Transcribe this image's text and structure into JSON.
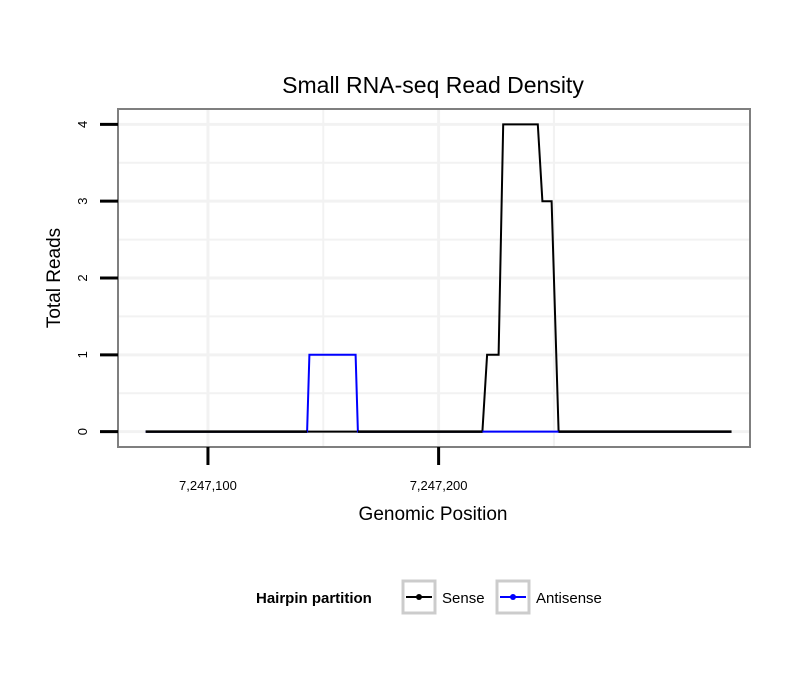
{
  "chart_data": {
    "type": "line",
    "title": "Small RNA-seq Read Density",
    "xlabel": "Genomic Position",
    "ylabel": "Total Reads",
    "xlim": [
      7247061,
      7247335
    ],
    "ylim": [
      -0.2,
      4.2
    ],
    "x_ticks": [
      7247100,
      7247200
    ],
    "x_tick_labels": [
      "7,247,100",
      "7,247,200"
    ],
    "y_ticks": [
      0,
      1,
      2,
      3,
      4
    ],
    "y_tick_labels": [
      "0",
      "1",
      "2",
      "3",
      "4"
    ],
    "grid": true,
    "legend": {
      "title": "Hairpin partition",
      "position": "bottom",
      "entries": [
        "Sense",
        "Antisense"
      ]
    },
    "series": [
      {
        "name": "Sense",
        "color": "#000000",
        "x": [
          7247073,
          7247219,
          7247221,
          7247226,
          7247228,
          7247231,
          7247243,
          7247245,
          7247249,
          7247252,
          7247327
        ],
        "y": [
          0,
          0,
          1,
          1,
          4,
          4,
          4,
          3,
          3,
          0,
          0
        ]
      },
      {
        "name": "Antisense",
        "color": "#0000ff",
        "x": [
          7247073,
          7247143,
          7247144,
          7247164,
          7247165,
          7247327
        ],
        "y": [
          0,
          0,
          1,
          1,
          0,
          0
        ]
      }
    ]
  }
}
